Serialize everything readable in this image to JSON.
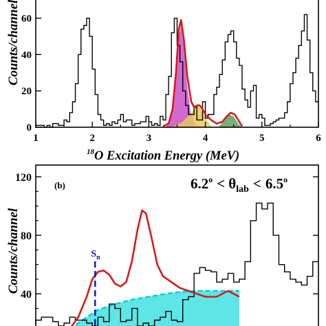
{
  "chart_data": [
    {
      "panel": "a",
      "type": "line",
      "xlabel": "O Excitation Energy (MeV)",
      "xlabel_superscript": "18",
      "ylabel": "Counts/channel",
      "xlim": [
        1,
        6
      ],
      "ylim": [
        0,
        70
      ],
      "xticks": [
        1,
        2,
        3,
        4,
        5,
        6
      ],
      "xtick_labels": [
        "1",
        "2",
        "3",
        "4",
        "5",
        "6"
      ],
      "yticks": [
        0,
        20,
        40,
        60
      ],
      "ytick_labels": [
        "0",
        "20",
        "40",
        "60"
      ],
      "histogram": {
        "bin_width": 0.05,
        "x_start": 1.0,
        "counts": [
          1,
          1,
          1,
          0,
          1,
          0,
          2,
          2,
          1,
          1,
          4,
          3,
          8,
          14,
          24,
          40,
          54,
          56,
          60,
          50,
          32,
          18,
          7,
          4,
          1,
          2,
          1,
          3,
          2,
          4,
          7,
          3,
          4,
          4,
          1,
          2,
          2,
          3,
          3,
          6,
          3,
          1,
          2,
          1,
          6,
          4,
          18,
          28,
          52,
          60,
          45,
          36,
          20,
          12,
          7,
          7,
          11,
          4,
          4,
          14,
          5,
          7,
          7,
          18,
          22,
          29,
          37,
          47,
          51,
          53,
          47,
          38,
          34,
          21,
          15,
          11,
          20,
          23,
          5,
          7,
          5,
          1,
          1,
          2,
          3,
          4,
          5,
          5,
          8,
          14,
          24,
          30,
          38,
          45,
          53,
          62,
          48,
          30,
          20,
          14,
          8
        ]
      },
      "fit_total": [
        [
          3.25,
          0.5
        ],
        [
          3.35,
          2
        ],
        [
          3.42,
          10
        ],
        [
          3.48,
          30
        ],
        [
          3.53,
          54
        ],
        [
          3.57,
          59
        ],
        [
          3.62,
          48
        ],
        [
          3.68,
          28
        ],
        [
          3.75,
          14
        ],
        [
          3.8,
          11
        ],
        [
          3.85,
          12
        ],
        [
          3.9,
          12
        ],
        [
          3.95,
          10
        ],
        [
          4.0,
          7
        ],
        [
          4.1,
          4
        ],
        [
          4.2,
          2
        ],
        [
          4.3,
          3
        ],
        [
          4.38,
          6
        ],
        [
          4.45,
          8
        ],
        [
          4.52,
          7
        ],
        [
          4.6,
          3
        ],
        [
          4.65,
          0.5
        ]
      ],
      "peaks": [
        {
          "fill": "#c94fc8",
          "points": [
            [
              3.3,
              0
            ],
            [
              3.4,
              6
            ],
            [
              3.46,
              22
            ],
            [
              3.52,
              48
            ],
            [
              3.57,
              56
            ],
            [
              3.62,
              44
            ],
            [
              3.68,
              22
            ],
            [
              3.74,
              8
            ],
            [
              3.82,
              2
            ],
            [
              3.9,
              0
            ]
          ]
        },
        {
          "fill": "#e9c95e",
          "points": [
            [
              3.4,
              0
            ],
            [
              3.6,
              3
            ],
            [
              3.75,
              8
            ],
            [
              3.85,
              12
            ],
            [
              3.92,
              10
            ],
            [
              4.02,
              4
            ],
            [
              4.12,
              0
            ]
          ]
        },
        {
          "fill": "#5f9f5f",
          "points": [
            [
              4.22,
              0
            ],
            [
              4.32,
              3
            ],
            [
              4.42,
              7
            ],
            [
              4.5,
              6
            ],
            [
              4.58,
              2
            ],
            [
              4.64,
              0
            ]
          ]
        }
      ],
      "colors": {
        "fit": "#d41a1a",
        "histogram": "#000000"
      }
    },
    {
      "panel": "b",
      "type": "line",
      "panel_label": "(b)",
      "angle_lo": "6.2",
      "angle_hi": "6.5",
      "angle_deg": "o",
      "angle_lt": "<",
      "angle_theta": "θ",
      "angle_sub": "lab",
      "ylabel": "Counts/channel",
      "xlim": [
        1.0,
        6.0
      ],
      "ylim": [
        18,
        128
      ],
      "yticks": [
        40,
        80,
        120
      ],
      "ytick_labels": [
        "40",
        "80",
        "120"
      ],
      "sn_label": "S",
      "sn_sub": "n",
      "sn_x": 2.05,
      "histogram": {
        "bin_width": 0.1,
        "x_start": 1.0,
        "counts": [
          22,
          24,
          24,
          21,
          18,
          20,
          24,
          22,
          22,
          20,
          18,
          24,
          21,
          33,
          30,
          21,
          22,
          30,
          18,
          20,
          18,
          22,
          24,
          28,
          22,
          21,
          36,
          38,
          54,
          58,
          56,
          55,
          48,
          50,
          54,
          48,
          50,
          62,
          90,
          102,
          98,
          102,
          80,
          60,
          55,
          50,
          48,
          46,
          52,
          62,
          60,
          58,
          56,
          58,
          54,
          48,
          52,
          58,
          62,
          59,
          60,
          55,
          50,
          46,
          48,
          44,
          42,
          58,
          52,
          36,
          32,
          28
        ]
      },
      "fit_total": [
        [
          1.6,
          16
        ],
        [
          1.75,
          24
        ],
        [
          1.9,
          38
        ],
        [
          2.0,
          50
        ],
        [
          2.1,
          55
        ],
        [
          2.2,
          56
        ],
        [
          2.3,
          53
        ],
        [
          2.4,
          47
        ],
        [
          2.5,
          45
        ],
        [
          2.6,
          48
        ],
        [
          2.7,
          62
        ],
        [
          2.8,
          84
        ],
        [
          2.88,
          97
        ],
        [
          2.95,
          95
        ],
        [
          3.05,
          78
        ],
        [
          3.15,
          60
        ],
        [
          3.25,
          52
        ],
        [
          3.4,
          48
        ],
        [
          3.55,
          44
        ],
        [
          3.7,
          42
        ],
        [
          3.85,
          40
        ],
        [
          4.0,
          38
        ],
        [
          4.2,
          38
        ],
        [
          4.4,
          42
        ],
        [
          4.6,
          38
        ]
      ],
      "background": [
        [
          1.6,
          16
        ],
        [
          1.75,
          20
        ],
        [
          1.9,
          24
        ],
        [
          2.1,
          29
        ],
        [
          2.4,
          33
        ],
        [
          2.7,
          36
        ],
        [
          3.0,
          38
        ],
        [
          3.3,
          40
        ],
        [
          3.6,
          41.5
        ],
        [
          3.9,
          42
        ],
        [
          4.2,
          42
        ],
        [
          4.6,
          42
        ]
      ],
      "colors": {
        "fit": "#d41a1a",
        "background_fill": "#5ee6e6",
        "background_line": "#00c8e0",
        "sn_line": "#1010c0"
      }
    }
  ]
}
